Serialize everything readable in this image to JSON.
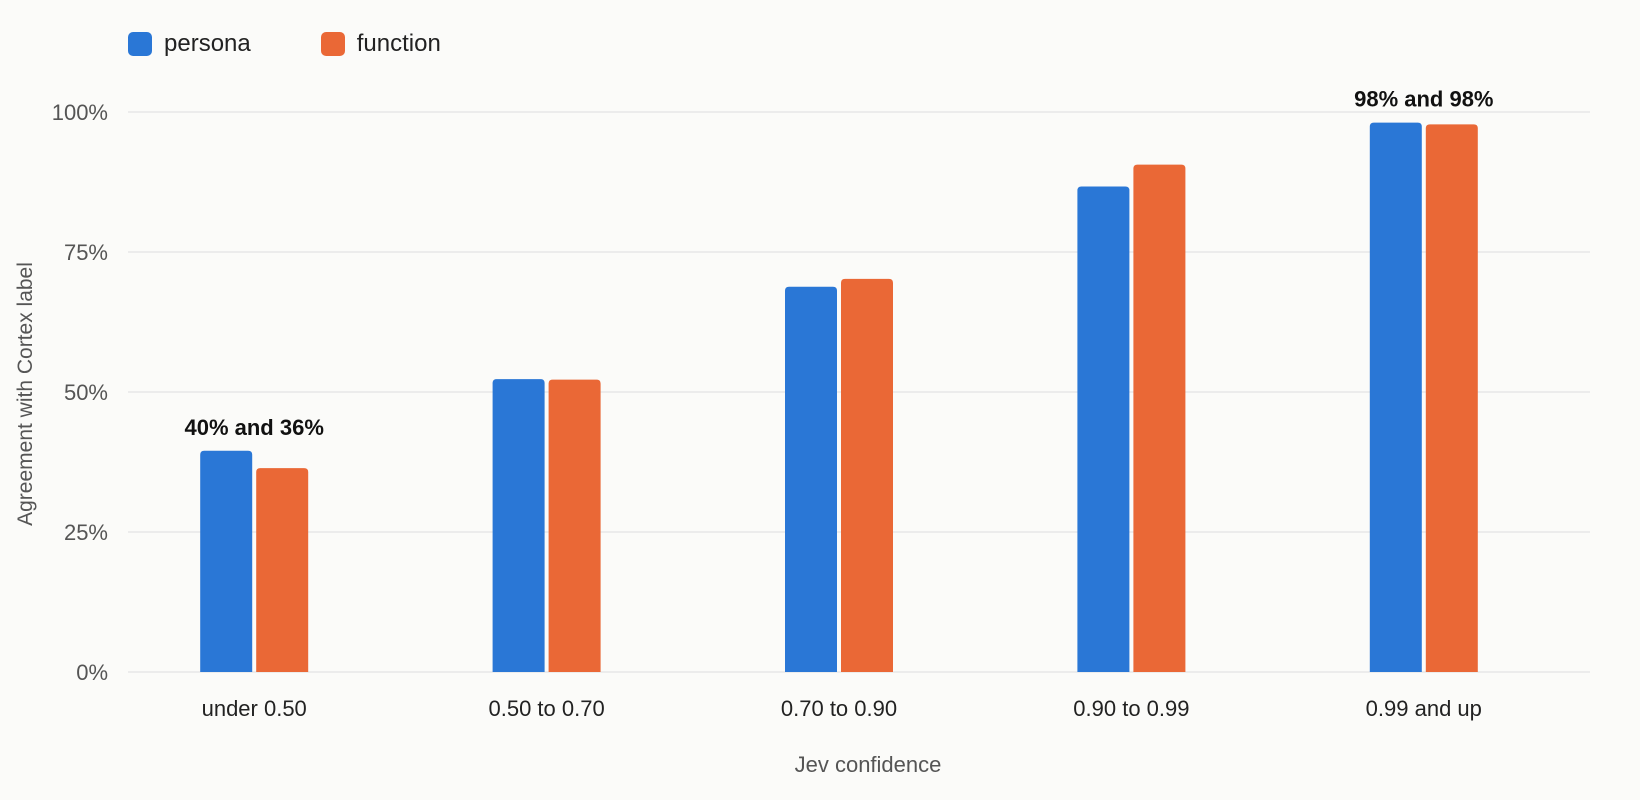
{
  "chart_data": {
    "type": "bar",
    "title": "",
    "xlabel": "Jev confidence",
    "ylabel": "Agreement with Cortex label",
    "ylim": [
      0,
      100
    ],
    "yticks": [
      "0%",
      "25%",
      "50%",
      "75%",
      "100%"
    ],
    "grid": true,
    "legend_position": "top-left",
    "categories": [
      "under 0.50",
      "0.50 to 0.70",
      "0.70 to 0.90",
      "0.90 to 0.99",
      "0.99 and up"
    ],
    "series": [
      {
        "name": "persona",
        "color": "#2a77d6",
        "values": [
          39.5,
          52.3,
          68.8,
          86.7,
          98.1
        ]
      },
      {
        "name": "function",
        "color": "#ea6836",
        "values": [
          36.4,
          52.2,
          70.2,
          90.6,
          97.8
        ]
      }
    ],
    "annotations": [
      {
        "category_index": 0,
        "text": "40% and 36%"
      },
      {
        "category_index": 4,
        "text": "98% and 98%"
      }
    ]
  }
}
